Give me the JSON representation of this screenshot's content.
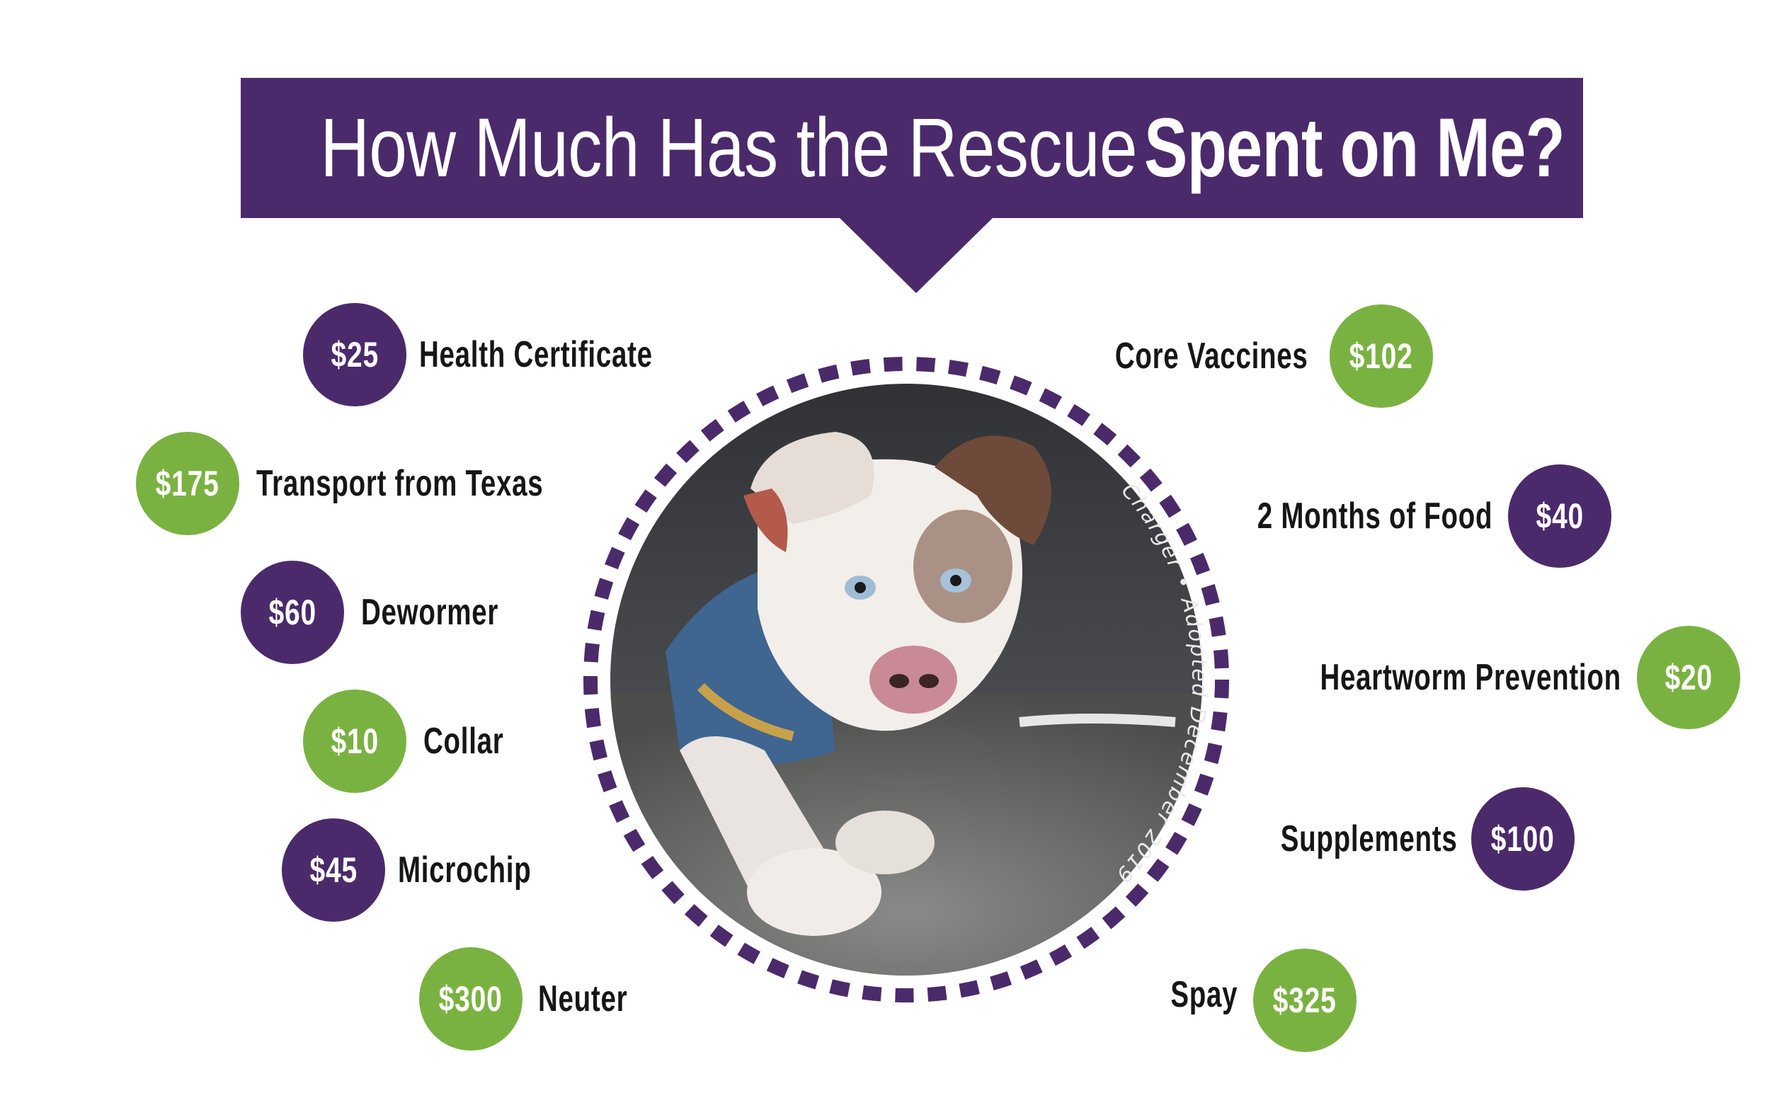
{
  "title": {
    "light": "How Much Has the Rescue",
    "bold": "Spent on Me?"
  },
  "photo_caption": "Charger • Adopted December 2019",
  "left_items": [
    {
      "amount": "$25",
      "label": "Health Certificate",
      "color": "purple"
    },
    {
      "amount": "$175",
      "label": "Transport from Texas",
      "color": "green"
    },
    {
      "amount": "$60",
      "label": "Dewormer",
      "color": "purple"
    },
    {
      "amount": "$10",
      "label": "Collar",
      "color": "green"
    },
    {
      "amount": "$45",
      "label": "Microchip",
      "color": "purple"
    },
    {
      "amount": "$300",
      "label": "Neuter",
      "color": "green"
    }
  ],
  "right_items": [
    {
      "amount": "$102",
      "label": "Core Vaccines",
      "color": "green"
    },
    {
      "amount": "$40",
      "label": "2 Months of Food",
      "color": "purple"
    },
    {
      "amount": "$20",
      "label": "Heartworm Prevention",
      "color": "green"
    },
    {
      "amount": "$100",
      "label": "Supplements",
      "color": "purple"
    },
    {
      "amount": "$325",
      "label": "Spay",
      "color": "green"
    }
  ],
  "colors": {
    "purple": "#4b2a6b",
    "green": "#7ab242",
    "text": "#161616"
  }
}
